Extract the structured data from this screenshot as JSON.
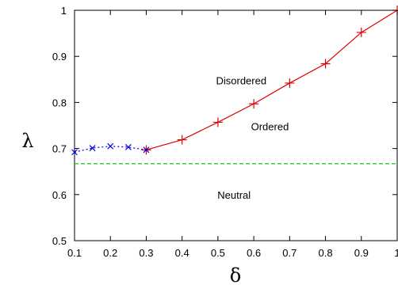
{
  "chart_data": {
    "type": "line",
    "title": "",
    "xlabel": "δ",
    "ylabel": "λ",
    "xlim": [
      0.1,
      1.0
    ],
    "ylim": [
      0.5,
      1.0
    ],
    "xticks": [
      "0.1",
      "0.2",
      "0.3",
      "0.4",
      "0.5",
      "0.6",
      "0.7",
      "0.8",
      "0.9",
      "1"
    ],
    "yticks": [
      "0.5",
      "0.6",
      "0.7",
      "0.8",
      "0.9",
      "1"
    ],
    "grid": false,
    "series": [
      {
        "color": "#e00000",
        "line_style": "solid",
        "marker": "plus",
        "x": [
          0.3,
          0.4,
          0.5,
          0.6,
          0.7,
          0.8,
          0.9,
          1.0
        ],
        "y": [
          0.697,
          0.719,
          0.757,
          0.797,
          0.842,
          0.884,
          0.952,
          1.0
        ]
      },
      {
        "color": "#0000e0",
        "line_style": "dotted",
        "marker": "cross",
        "x": [
          0.1,
          0.15,
          0.2,
          0.25,
          0.3
        ],
        "y": [
          0.692,
          0.701,
          0.705,
          0.703,
          0.697
        ]
      },
      {
        "color": "#00c000",
        "line_style": "dashed",
        "marker": "none",
        "x": [
          0.1,
          1.0
        ],
        "y": [
          0.667,
          0.667
        ]
      }
    ],
    "annotations": [
      {
        "text": "Disordered",
        "x": 0.565,
        "y": 0.848
      },
      {
        "text": "Ordered",
        "x": 0.645,
        "y": 0.748
      },
      {
        "text": "Neutral",
        "x": 0.545,
        "y": 0.6
      }
    ]
  }
}
